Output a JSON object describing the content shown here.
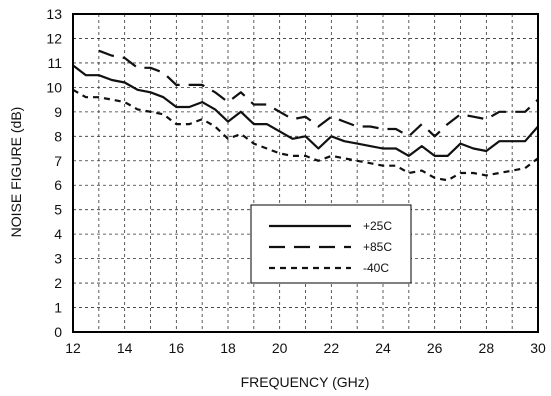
{
  "chart_data": {
    "type": "line",
    "title": "",
    "xlabel": "FREQUENCY (GHz)",
    "ylabel": "NOISE FIGURE (dB)",
    "xlim": [
      12,
      30
    ],
    "ylim": [
      0,
      13
    ],
    "xticks": [
      "12",
      "14",
      "16",
      "18",
      "20",
      "22",
      "24",
      "26",
      "28",
      "30"
    ],
    "yticks": [
      "0",
      "1",
      "2",
      "3",
      "4",
      "5",
      "6",
      "7",
      "8",
      "9",
      "10",
      "11",
      "12",
      "13"
    ],
    "grid": true,
    "legend_position": "lower-center",
    "series": [
      {
        "name": "+25C",
        "style": "solid",
        "x": [
          12,
          12.5,
          13,
          13.5,
          14,
          14.5,
          15,
          15.5,
          16,
          16.5,
          17,
          17.5,
          18,
          18.5,
          19,
          19.5,
          20,
          20.5,
          21,
          21.5,
          22,
          22.5,
          23,
          23.5,
          24,
          24.5,
          25,
          25.5,
          26,
          26.5,
          27,
          27.5,
          28,
          28.5,
          29,
          29.5,
          30
        ],
        "y": [
          10.9,
          10.5,
          10.5,
          10.3,
          10.2,
          9.9,
          9.8,
          9.6,
          9.2,
          9.2,
          9.4,
          9.1,
          8.6,
          9.0,
          8.5,
          8.5,
          8.2,
          7.9,
          8.0,
          7.5,
          8.0,
          7.8,
          7.7,
          7.6,
          7.5,
          7.5,
          7.2,
          7.6,
          7.2,
          7.2,
          7.7,
          7.5,
          7.4,
          7.8,
          7.8,
          7.8,
          8.4
        ]
      },
      {
        "name": "+85C",
        "style": "long-dash",
        "x": [
          13,
          13.5,
          14,
          14.5,
          15,
          15.5,
          16,
          16.5,
          17,
          17.5,
          18,
          18.5,
          19,
          19.5,
          20,
          20.5,
          21,
          21.5,
          22,
          22.5,
          23,
          23.5,
          24,
          24.5,
          25,
          25.5,
          26,
          26.5,
          27,
          27.5,
          28,
          28.5,
          29,
          29.5,
          30
        ],
        "y": [
          11.5,
          11.3,
          11.2,
          10.8,
          10.8,
          10.6,
          10.1,
          10.1,
          10.1,
          9.8,
          9.4,
          9.8,
          9.3,
          9.3,
          9.0,
          8.7,
          8.8,
          8.4,
          8.8,
          8.6,
          8.4,
          8.4,
          8.3,
          8.3,
          8.0,
          8.5,
          8.0,
          8.5,
          8.9,
          8.8,
          8.7,
          9.0,
          9.0,
          9.0,
          9.5
        ]
      },
      {
        "name": "-40C",
        "style": "short-dash",
        "x": [
          12,
          12.5,
          13,
          13.5,
          14,
          14.5,
          15,
          15.5,
          16,
          16.5,
          17,
          17.5,
          18,
          18.5,
          19,
          19.5,
          20,
          20.5,
          21,
          21.5,
          22,
          22.5,
          23,
          23.5,
          24,
          24.5,
          25,
          25.5,
          26,
          26.5,
          27,
          27.5,
          28,
          28.5,
          29,
          29.5,
          30
        ],
        "y": [
          9.9,
          9.6,
          9.6,
          9.5,
          9.4,
          9.1,
          9.0,
          8.9,
          8.5,
          8.5,
          8.7,
          8.4,
          7.9,
          8.1,
          7.7,
          7.5,
          7.3,
          7.2,
          7.2,
          7.0,
          7.2,
          7.1,
          7.0,
          6.9,
          6.8,
          6.8,
          6.5,
          6.6,
          6.3,
          6.2,
          6.5,
          6.5,
          6.4,
          6.5,
          6.6,
          6.7,
          7.1
        ]
      }
    ]
  }
}
